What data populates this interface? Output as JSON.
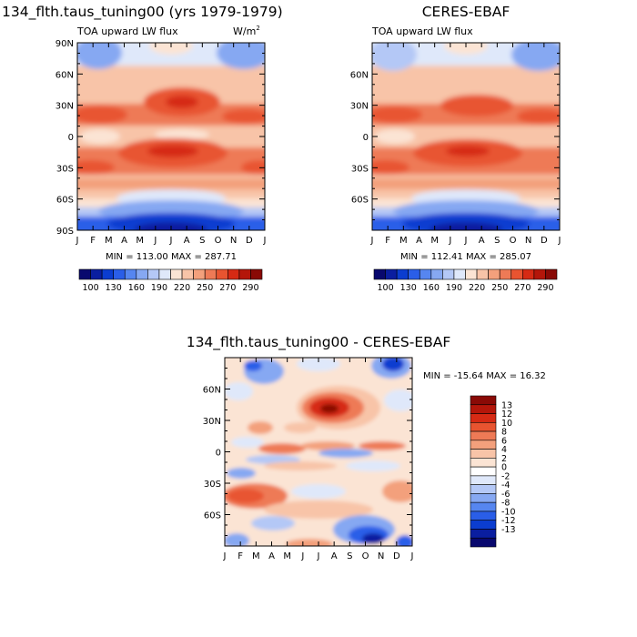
{
  "chart_data": [
    {
      "type": "heatmap",
      "title": "134_flth.taus_tuning00 (yrs 1979-1979)",
      "subtitle_left": "TOA upward LW flux",
      "units_base": "W/m",
      "units_exp": "2",
      "x_tick_labels": [
        "J",
        "F",
        "M",
        "A",
        "M",
        "J",
        "J",
        "A",
        "S",
        "O",
        "N",
        "D",
        "J"
      ],
      "y_tick_labels": [
        "90N",
        "60N",
        "30N",
        "0",
        "30S",
        "60S",
        "90S"
      ],
      "stats": "MIN = 113.00  MAX = 287.71",
      "colorbar_labels": [
        "100",
        "130",
        "160",
        "190",
        "220",
        "250",
        "270",
        "290"
      ],
      "value_range": [
        100,
        290
      ]
    },
    {
      "type": "heatmap",
      "title": "CERES-EBAF",
      "subtitle_left": "TOA upward LW flux",
      "x_tick_labels": [
        "J",
        "F",
        "M",
        "A",
        "M",
        "J",
        "J",
        "A",
        "S",
        "O",
        "N",
        "D",
        "J"
      ],
      "y_tick_labels": [
        "60N",
        "30N",
        "0",
        "30S",
        "60S"
      ],
      "stats": "MIN = 112.41  MAX = 285.07",
      "colorbar_labels": [
        "100",
        "130",
        "160",
        "190",
        "220",
        "250",
        "270",
        "290"
      ],
      "value_range": [
        100,
        290
      ]
    },
    {
      "type": "heatmap",
      "title": "134_flth.taus_tuning00 - CERES-EBAF",
      "x_tick_labels": [
        "J",
        "F",
        "M",
        "A",
        "M",
        "J",
        "J",
        "A",
        "S",
        "O",
        "N",
        "D",
        "J"
      ],
      "y_tick_labels": [
        "60N",
        "30N",
        "0",
        "30S",
        "60S"
      ],
      "stats": "MIN = -15.64  MAX =  16.32",
      "colorbar_labels": [
        "13",
        "12",
        "10",
        "8",
        "6",
        "4",
        "2",
        "0",
        "-2",
        "-4",
        "-6",
        "-8",
        "-10",
        "-12",
        "-13"
      ],
      "value_range": [
        -15.64,
        16.32
      ]
    }
  ],
  "colors": {
    "ramp": [
      "#08086e",
      "#0a1ea0",
      "#0b3dd0",
      "#2a5ee8",
      "#5686f0",
      "#86a8f2",
      "#b4c8f6",
      "#dfe8fa",
      "#fbe4d4",
      "#f8c4a8",
      "#f3a07c",
      "#ee7a56",
      "#e85430",
      "#d62a14",
      "#b4160a",
      "#8a0a06"
    ]
  }
}
